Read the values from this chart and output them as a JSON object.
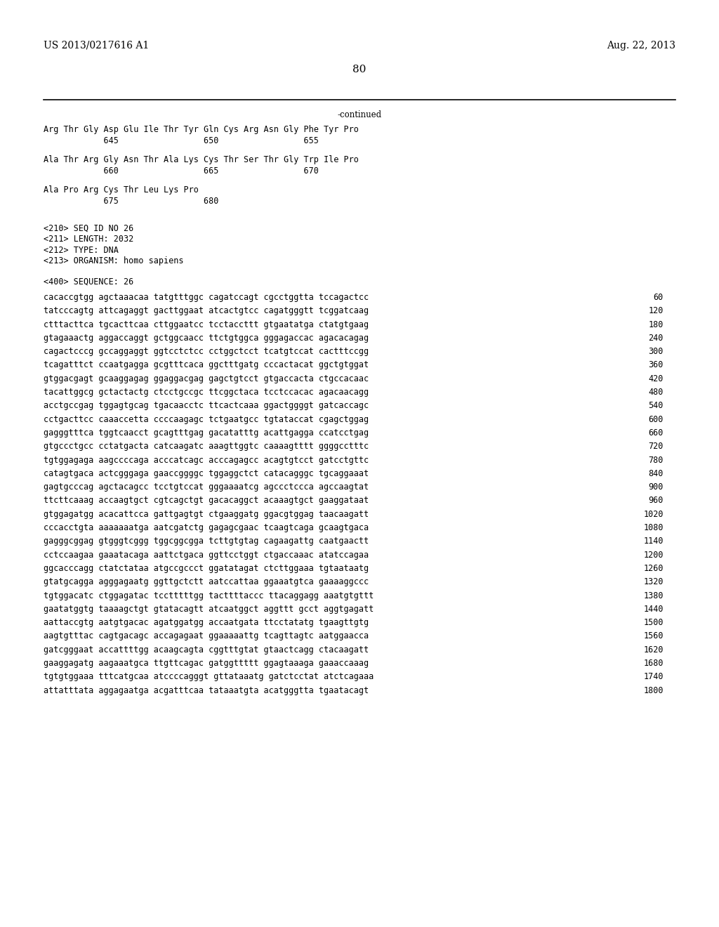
{
  "header_left": "US 2013/0217616 A1",
  "header_right": "Aug. 22, 2013",
  "page_number": "80",
  "continued_text": "-continued",
  "background_color": "#ffffff",
  "text_color": "#000000",
  "font_size_header": 10.0,
  "font_size_body": 8.5,
  "font_size_page": 11.0,
  "amino_acid_lines": [
    "Arg Thr Gly Asp Glu Ile Thr Tyr Gln Cys Arg Asn Gly Phe Tyr Pro",
    "            645                 650                 655",
    "",
    "Ala Thr Arg Gly Asn Thr Ala Lys Cys Thr Ser Thr Gly Trp Ile Pro",
    "            660                 665                 670",
    "",
    "Ala Pro Arg Cys Thr Leu Lys Pro",
    "            675                 680"
  ],
  "metadata_lines": [
    "<210> SEQ ID NO 26",
    "<211> LENGTH: 2032",
    "<212> TYPE: DNA",
    "<213> ORGANISM: homo sapiens"
  ],
  "sequence_label": "<400> SEQUENCE: 26",
  "sequence_lines": [
    [
      "cacaccgtgg agctaaacaa tatgtttggc cagatccagt cgcctggtta tccagactcc",
      "60"
    ],
    [
      "tatcccagtg attcagaggt gacttggaat atcactgtcc cagatgggtt tcggatcaag",
      "120"
    ],
    [
      "ctttacttca tgcacttcaa cttggaatcc tcctaccttt gtgaatatga ctatgtgaag",
      "180"
    ],
    [
      "gtagaaactg aggaccaggt gctggcaacc ttctgtggca gggagaccac agacacagag",
      "240"
    ],
    [
      "cagactcccg gccaggaggt ggtcctctcc cctggctcct tcatgtccat cactttccgg",
      "300"
    ],
    [
      "tcagatttct ccaatgagga gcgtttcaca ggctttgatg cccactacat ggctgtggat",
      "360"
    ],
    [
      "gtggacgagt gcaaggagag ggaggacgag gagctgtcct gtgaccacta ctgccacaac",
      "420"
    ],
    [
      "tacattggcg gctactactg ctcctgccgc ttcggctaca tcctccacac agacaacagg",
      "480"
    ],
    [
      "acctgccgag tggagtgcag tgacaacctc ttcactcaaa ggactggggt gatcaccagc",
      "540"
    ],
    [
      "cctgacttcc caaaccetta ccccaagagc tctgaatgcc tgtataccat cgagctggag",
      "600"
    ],
    [
      "gagggtttca tggtcaacct gcagtttgag gacatatttg acattgagga ccatcctgag",
      "660"
    ],
    [
      "gtgccctgcc cctatgacta catcaagatc aaagttggtc caaaagtttt ggggcctttc",
      "720"
    ],
    [
      "tgtggagaga aagccccaga acccatcagc acccagagcc acagtgtcct gatcctgttc",
      "780"
    ],
    [
      "catagtgaca actcgggaga gaaccggggc tggaggctct catacagggc tgcaggaaat",
      "840"
    ],
    [
      "gagtgcccag agctacagcc tcctgtccat gggaaaatcg agccctccca agccaagtat",
      "900"
    ],
    [
      "ttcttcaaag accaagtgct cgtcagctgt gacacaggct acaaagtgct gaaggataat",
      "960"
    ],
    [
      "gtggagatgg acacattcca gattgagtgt ctgaaggatg ggacgtggag taacaagatt",
      "1020"
    ],
    [
      "cccacctgta aaaaaaatga aatcgatctg gagagcgaac tcaagtcaga gcaagtgaca",
      "1080"
    ],
    [
      "gagggcggag gtgggtcggg tggcggcgga tcttgtgtag cagaagattg caatgaactt",
      "1140"
    ],
    [
      "cctccaagaa gaaatacaga aattctgaca ggttcctggt ctgaccaaac atatccagaa",
      "1200"
    ],
    [
      "ggcacccagg ctatctataa atgccgccct ggatatagat ctcttggaaa tgtaataatg",
      "1260"
    ],
    [
      "gtatgcagga agggagaatg ggttgctctt aatccattaa ggaaatgtca gaaaaggccc",
      "1320"
    ],
    [
      "tgtggacatc ctggagatac tcctttttgg tacttttaccc ttacaggagg aaatgtgttt",
      "1380"
    ],
    [
      "gaatatggtg taaaagctgt gtatacagtt atcaatggct aggttt gcct aggtgagatt",
      "1440"
    ],
    [
      "aattaccgtg aatgtgacac agatggatgg accaatgata ttcctatatg tgaagttgtg",
      "1500"
    ],
    [
      "aagtgtttac cagtgacagc accagagaat ggaaaaattg tcagttagtc aatggaacca",
      "1560"
    ],
    [
      "gatcgggaat accattttgg acaagcagta cggtttgtat gtaactcagg ctacaagatt",
      "1620"
    ],
    [
      "gaaggagatg aagaaatgca ttgttcagac gatggttttt ggagtaaaga gaaaccaaag",
      "1680"
    ],
    [
      "tgtgtggaaa tttcatgcaa atccccagggt gttataaatg gatctcctat atctcagaaa",
      "1740"
    ],
    [
      "attatttata aggagaatga acgatttcaa tataaatgta acatgggtta tgaatacagt",
      "1800"
    ]
  ]
}
